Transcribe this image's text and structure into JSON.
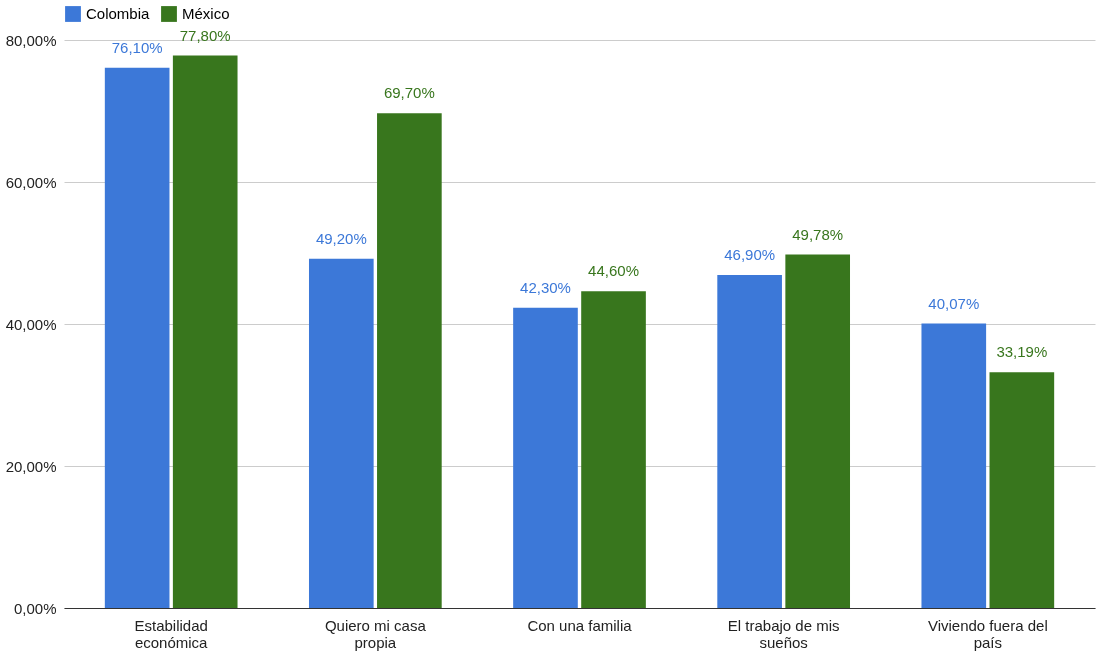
{
  "chart_data": {
    "type": "bar",
    "categories": [
      "Estabilidad económica",
      "Quiero mi casa propia",
      "Con una familia",
      "El trabajo de mis sueños",
      "Viviendo fuera del país"
    ],
    "series": [
      {
        "name": "Colombia",
        "color": "#3c78d8",
        "values": [
          76.1,
          49.2,
          42.3,
          46.9,
          40.07
        ],
        "value_labels": [
          "76,10%",
          "49,20%",
          "42,30%",
          "46,90%",
          "40,07%"
        ]
      },
      {
        "name": "México",
        "color": "#38761d",
        "values": [
          77.8,
          69.7,
          44.6,
          49.78,
          33.19
        ],
        "value_labels": [
          "77,80%",
          "69,70%",
          "44,60%",
          "49,78%",
          "33,19%"
        ]
      }
    ],
    "ylim": [
      0,
      80
    ],
    "yticks": [
      {
        "value": 0,
        "label": "0,00%"
      },
      {
        "value": 20,
        "label": "20,00%"
      },
      {
        "value": 40,
        "label": "40,00%"
      },
      {
        "value": 60,
        "label": "60,00%"
      },
      {
        "value": 80,
        "label": "80,00%"
      }
    ],
    "grid": "y",
    "legend": "top"
  }
}
